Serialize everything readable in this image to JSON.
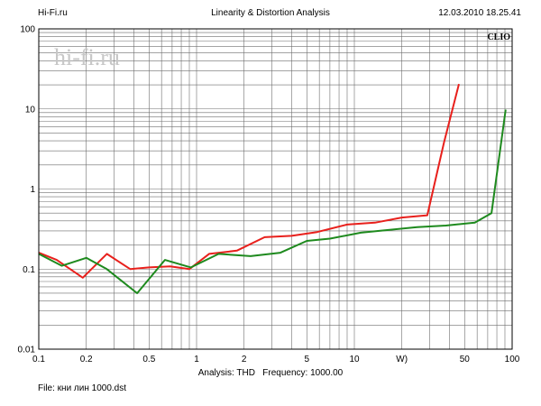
{
  "header": {
    "left": "Hi-Fi.ru",
    "title": "Linearity & Distortion Analysis",
    "datetime": "12.03.2010 18.25.41"
  },
  "watermark": "hi-fi.ru",
  "brand_label": "CLIO",
  "footer": {
    "analysis_label": "Analysis: THD",
    "frequency_label": "Frequency: 1000.00",
    "file_label": "File: кни лин 1000.dst"
  },
  "chart_data": {
    "type": "line",
    "x_scale": "log",
    "y_scale": "log",
    "xlim": [
      0.1,
      100
    ],
    "ylim": [
      0.01,
      100
    ],
    "x_tick_labels": [
      "0.1",
      "0.2",
      "0.5",
      "1",
      "2",
      "5",
      "10",
      "W)",
      "50",
      "100"
    ],
    "y_tick_labels": [
      "0.01",
      "0.1",
      "1",
      "10",
      "100"
    ],
    "grid": true,
    "series": [
      {
        "color": "#e8201c",
        "points": [
          [
            0.1,
            0.16
          ],
          [
            0.13,
            0.13
          ],
          [
            0.19,
            0.078
          ],
          [
            0.27,
            0.155
          ],
          [
            0.38,
            0.1
          ],
          [
            0.5,
            0.105
          ],
          [
            0.68,
            0.108
          ],
          [
            0.9,
            0.1
          ],
          [
            1.2,
            0.155
          ],
          [
            1.8,
            0.17
          ],
          [
            2.7,
            0.25
          ],
          [
            4.0,
            0.26
          ],
          [
            5.8,
            0.29
          ],
          [
            9.0,
            0.36
          ],
          [
            13.5,
            0.38
          ],
          [
            20.0,
            0.44
          ],
          [
            29.0,
            0.47
          ],
          [
            37.0,
            3.8
          ],
          [
            46.0,
            20.5
          ]
        ]
      },
      {
        "color": "#1e8a1e",
        "points": [
          [
            0.1,
            0.155
          ],
          [
            0.14,
            0.11
          ],
          [
            0.2,
            0.138
          ],
          [
            0.27,
            0.1
          ],
          [
            0.42,
            0.05
          ],
          [
            0.63,
            0.13
          ],
          [
            0.92,
            0.105
          ],
          [
            1.38,
            0.155
          ],
          [
            2.2,
            0.145
          ],
          [
            3.4,
            0.16
          ],
          [
            5.0,
            0.225
          ],
          [
            7.0,
            0.24
          ],
          [
            11.0,
            0.285
          ],
          [
            17.0,
            0.31
          ],
          [
            25.0,
            0.335
          ],
          [
            38.0,
            0.35
          ],
          [
            58.0,
            0.38
          ],
          [
            74.0,
            0.5
          ],
          [
            91.0,
            9.8
          ]
        ]
      }
    ]
  }
}
